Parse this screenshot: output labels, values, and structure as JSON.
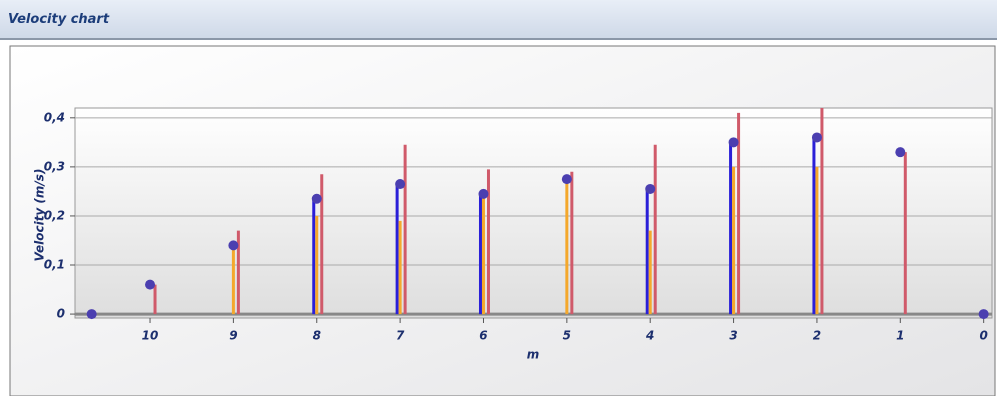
{
  "window_title": "Velocity chart",
  "chart_data": {
    "type": "stem",
    "x_label": "m",
    "y_label": "Velocity (m/s)",
    "x": [
      10.7,
      10,
      9,
      8,
      7,
      6,
      5,
      4,
      3,
      2,
      1,
      0
    ],
    "xlim": [
      10.9,
      -0.1
    ],
    "xticks": [
      10,
      9,
      8,
      7,
      6,
      5,
      4,
      3,
      2,
      1,
      0
    ],
    "ylim": [
      -0.008,
      0.42
    ],
    "yticks": [
      {
        "value": 0,
        "label": "0"
      },
      {
        "value": 0.1,
        "label": "0,1"
      },
      {
        "value": 0.2,
        "label": "0,2"
      },
      {
        "value": 0.3,
        "label": "0,3"
      },
      {
        "value": 0.4,
        "label": "0,4"
      }
    ],
    "grid": true,
    "series": [
      {
        "color": "#d05a6a",
        "values": [
          null,
          0.06,
          0.17,
          0.285,
          0.345,
          0.295,
          0.29,
          0.345,
          0.41,
          0.42,
          0.33,
          null
        ]
      },
      {
        "color": "#2a1fd8",
        "values": [
          null,
          null,
          null,
          0.235,
          0.265,
          0.245,
          null,
          0.255,
          0.35,
          0.36,
          null,
          null
        ]
      },
      {
        "color": "#f4a82c",
        "values": [
          null,
          null,
          0.14,
          0.2,
          0.19,
          0.25,
          0.275,
          0.17,
          0.3,
          0.3,
          null,
          null
        ]
      },
      {
        "color": "#4b3fb0",
        "marker": "dot",
        "values": [
          0,
          0.06,
          0.14,
          0.235,
          0.265,
          0.245,
          0.275,
          0.255,
          0.35,
          0.36,
          0.33,
          0
        ]
      }
    ]
  }
}
